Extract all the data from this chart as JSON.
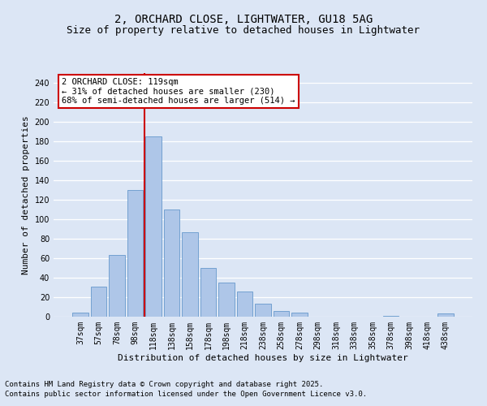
{
  "title1": "2, ORCHARD CLOSE, LIGHTWATER, GU18 5AG",
  "title2": "Size of property relative to detached houses in Lightwater",
  "xlabel": "Distribution of detached houses by size in Lightwater",
  "ylabel": "Number of detached properties",
  "categories": [
    "37sqm",
    "57sqm",
    "78sqm",
    "98sqm",
    "118sqm",
    "138sqm",
    "158sqm",
    "178sqm",
    "198sqm",
    "218sqm",
    "238sqm",
    "258sqm",
    "278sqm",
    "298sqm",
    "318sqm",
    "338sqm",
    "358sqm",
    "378sqm",
    "398sqm",
    "418sqm",
    "438sqm"
  ],
  "values": [
    4,
    31,
    63,
    130,
    185,
    110,
    87,
    50,
    35,
    26,
    13,
    6,
    4,
    0,
    0,
    0,
    0,
    1,
    0,
    0,
    3
  ],
  "bar_color": "#aec6e8",
  "bar_edge_color": "#6699cc",
  "vline_color": "#cc0000",
  "vline_index": 4,
  "ylim": [
    0,
    250
  ],
  "yticks": [
    0,
    20,
    40,
    60,
    80,
    100,
    120,
    140,
    160,
    180,
    200,
    220,
    240
  ],
  "fig_background_color": "#dce6f5",
  "axes_background_color": "#dce6f5",
  "grid_color": "#ffffff",
  "annotation_text": "2 ORCHARD CLOSE: 119sqm\n← 31% of detached houses are smaller (230)\n68% of semi-detached houses are larger (514) →",
  "annotation_box_facecolor": "#ffffff",
  "annotation_box_edgecolor": "#cc0000",
  "footer1": "Contains HM Land Registry data © Crown copyright and database right 2025.",
  "footer2": "Contains public sector information licensed under the Open Government Licence v3.0.",
  "title1_fontsize": 10,
  "title2_fontsize": 9,
  "axis_label_fontsize": 8,
  "tick_fontsize": 7,
  "annotation_fontsize": 7.5,
  "footer_fontsize": 6.5
}
